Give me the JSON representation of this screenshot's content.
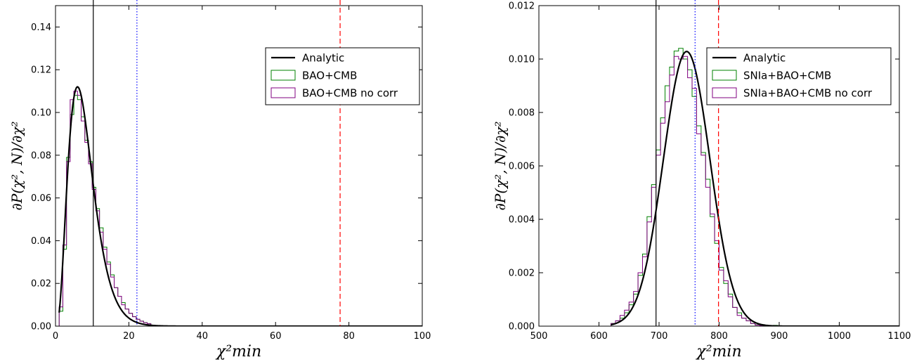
{
  "chart_data": [
    {
      "type": "line",
      "xlabel": "χ²min",
      "ylabel": "∂P(χ², N)/∂χ²",
      "xlim": [
        0,
        100
      ],
      "ylim": [
        0,
        0.15
      ],
      "xticks": [
        "0",
        "20",
        "40",
        "60",
        "80",
        "100"
      ],
      "yticks": [
        "0.00",
        "0.02",
        "0.04",
        "0.06",
        "0.08",
        "0.10",
        "0.12",
        "0.14"
      ],
      "legend_position": "top-right",
      "legend": [
        "Analytic",
        "BAO+CMB",
        "BAO+CMB no corr"
      ],
      "vlines": [
        {
          "x": 10.3,
          "style": "solid",
          "color": "#000000"
        },
        {
          "x": 22.2,
          "style": "dotted",
          "color": "#0000ff"
        },
        {
          "x": 77.6,
          "style": "dashed",
          "color": "#ff0000"
        }
      ],
      "series": [
        {
          "name": "Analytic",
          "kind": "curve",
          "color": "#000000",
          "dof": 8
        },
        {
          "name": "BAO+CMB",
          "kind": "histogram",
          "color": "#008000",
          "bin_start": 1,
          "bin_width": 1,
          "values": [
            0.007,
            0.036,
            0.079,
            0.099,
            0.108,
            0.106,
            0.098,
            0.087,
            0.077,
            0.065,
            0.055,
            0.046,
            0.037,
            0.03,
            0.024,
            0.018,
            0.014,
            0.011,
            0.008,
            0.006,
            0.0045,
            0.0032,
            0.0024,
            0.0017,
            0.0012
          ]
        },
        {
          "name": "BAO+CMB no corr",
          "kind": "histogram",
          "color": "#800080",
          "bin_start": 1,
          "bin_width": 1,
          "values": [
            0.009,
            0.038,
            0.077,
            0.106,
            0.11,
            0.108,
            0.096,
            0.086,
            0.076,
            0.064,
            0.054,
            0.044,
            0.036,
            0.029,
            0.023,
            0.018,
            0.014,
            0.01,
            0.008,
            0.006,
            0.0044,
            0.0032,
            0.0023,
            0.0016,
            0.0011
          ]
        }
      ]
    },
    {
      "type": "line",
      "xlabel": "χ²min",
      "ylabel": "∂P(χ², N)/∂χ²",
      "xlim": [
        500,
        1100
      ],
      "ylim": [
        0,
        0.012
      ],
      "xticks": [
        "500",
        "600",
        "700",
        "800",
        "900",
        "1000",
        "1100"
      ],
      "yticks": [
        "0.000",
        "0.002",
        "0.004",
        "0.006",
        "0.008",
        "0.010",
        "0.012"
      ],
      "legend_position": "top-right",
      "legend": [
        "Analytic",
        "SNIa+BAO+CMB",
        "SNIa+BAO+CMB no corr"
      ],
      "vlines": [
        {
          "x": 695,
          "style": "solid",
          "color": "#000000"
        },
        {
          "x": 760,
          "style": "dotted",
          "color": "#0000ff"
        },
        {
          "x": 799,
          "style": "dashed",
          "color": "#ff0000"
        }
      ],
      "series": [
        {
          "name": "Analytic",
          "kind": "curve",
          "color": "#000000",
          "mean": 746,
          "sd": 38.8
        },
        {
          "name": "SNIa+BAO+CMB",
          "kind": "histogram",
          "color": "#008000",
          "bin_start": 620,
          "bin_width": 7.5,
          "values": [
            0.0001,
            0.0002,
            0.0003,
            0.0005,
            0.0008,
            0.0012,
            0.0019,
            0.0027,
            0.0041,
            0.0053,
            0.0066,
            0.0078,
            0.009,
            0.0097,
            0.0103,
            0.0104,
            0.01,
            0.0096,
            0.0086,
            0.0075,
            0.0065,
            0.0055,
            0.0041,
            0.0031,
            0.0022,
            0.0016,
            0.0012,
            0.0007,
            0.0005,
            0.0003,
            0.0002,
            0.0001,
            5e-05,
            3e-05,
            1e-05,
            0.0,
            3e-05,
            0.0,
            0.0,
            0.0,
            1e-05
          ]
        },
        {
          "name": "SNIa+BAO+CMB no corr",
          "kind": "histogram",
          "color": "#800080",
          "bin_start": 620,
          "bin_width": 7.5,
          "values": [
            0.0001,
            0.0002,
            0.0004,
            0.0006,
            0.0009,
            0.0013,
            0.002,
            0.0026,
            0.0039,
            0.0052,
            0.0064,
            0.0076,
            0.0084,
            0.0094,
            0.0101,
            0.01,
            0.0101,
            0.0093,
            0.0089,
            0.0072,
            0.0064,
            0.0052,
            0.0042,
            0.0032,
            0.0021,
            0.0017,
            0.0011,
            0.0007,
            0.0004,
            0.0003,
            0.0002,
            0.0001,
            4e-05,
            2e-05,
            1e-05,
            0.0,
            0.0,
            0.0,
            0.0,
            0.0,
            0.0
          ]
        }
      ]
    }
  ]
}
